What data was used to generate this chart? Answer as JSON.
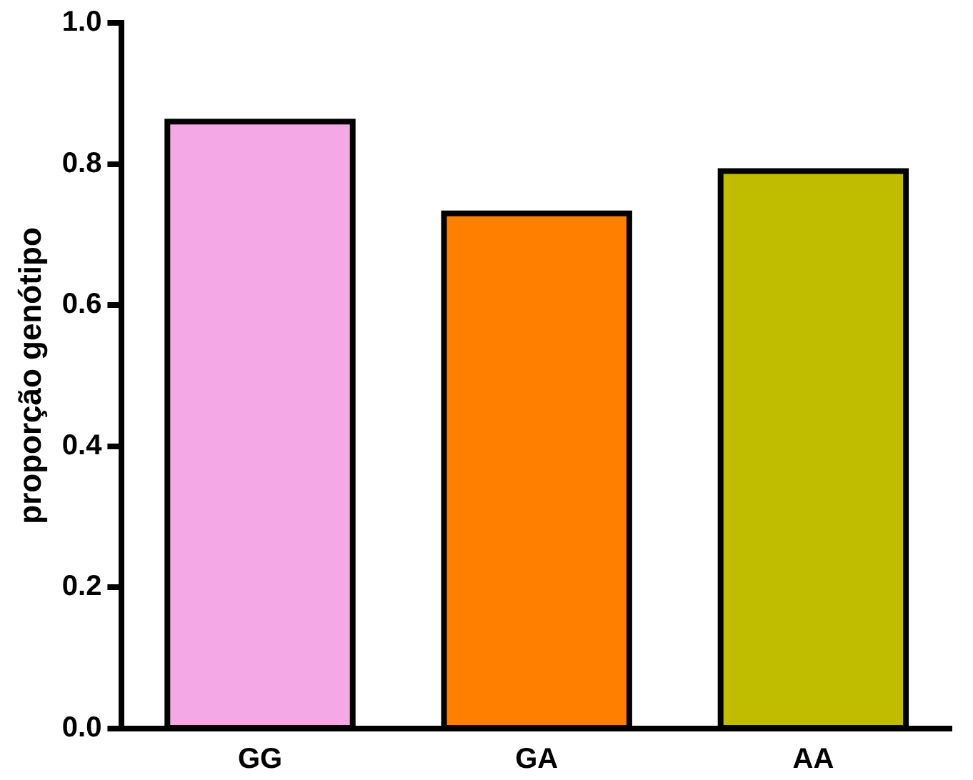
{
  "chart_data": {
    "type": "bar",
    "ylabel": "proporção genótipo",
    "categories": [
      "GG",
      "GA",
      "AA"
    ],
    "values": [
      0.86,
      0.73,
      0.79
    ],
    "colors": [
      "#f4a8e6",
      "#ff8000",
      "#c0bc00"
    ],
    "ylim": [
      0,
      1
    ],
    "yticks": [
      {
        "value": 0,
        "label": "0.0"
      },
      {
        "value": 0.2,
        "label": "0.2"
      },
      {
        "value": 0.4,
        "label": "0.4"
      },
      {
        "value": 0.6,
        "label": "0.6"
      },
      {
        "value": 0.8,
        "label": "0.8"
      },
      {
        "value": 1,
        "label": "1.0"
      }
    ],
    "grid": false,
    "legend": false
  }
}
